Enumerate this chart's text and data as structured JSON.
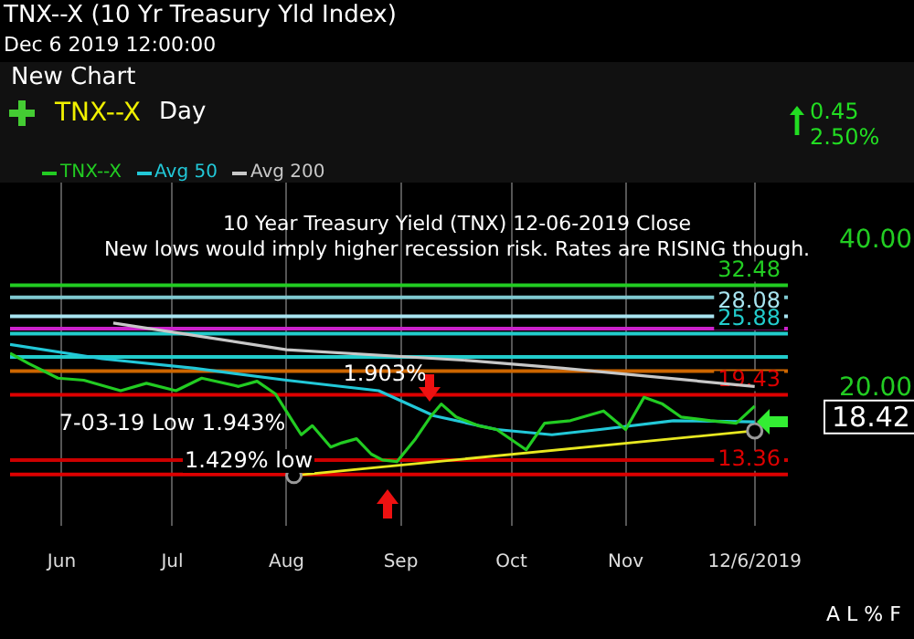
{
  "chart_data": {
    "type": "line",
    "title": "TNX--X (10 Yr Treasury Yld Index)",
    "subtitle": "Dec 6 2019 12:00:00",
    "annotations": [
      "New Chart",
      "TNX--X",
      "Day",
      "0.45",
      "2.50%",
      "10 Year Treasury Yield (TNX) 12-06-2019 Close",
      "New lows would imply higher recession risk. Rates are RISING though.",
      {
        "text": "1.903%",
        "x": "2019-09-13",
        "y": 19.03
      },
      {
        "text": "7-03-19 Low 1.943%",
        "x": "2019-07-03",
        "y": 19.43
      },
      "1.429% low",
      {
        "text": "18.42",
        "x": "2019-12-06",
        "y": 18.42
      },
      "A L % F"
    ],
    "log": "y",
    "grid": "x",
    "legend": "top left",
    "xlim": [
      "2019-05-18",
      "2019-12-15"
    ],
    "xticks": [
      {
        "value": "2019-06-01",
        "label": "Jun"
      },
      {
        "value": "2019-07-01",
        "label": "Jul"
      },
      {
        "value": "2019-08-01",
        "label": "Aug"
      },
      {
        "value": "2019-09-01",
        "label": "Sep"
      },
      {
        "value": "2019-10-01",
        "label": "Oct"
      },
      {
        "value": "2019-11-01",
        "label": "Nov"
      },
      {
        "value": "2019-12-06",
        "label": "12/6/2019"
      }
    ],
    "ylim": [
      10.5,
      52.6
    ],
    "yticks": [
      {
        "value": 20,
        "label": "20.00"
      },
      {
        "value": 40,
        "label": "40.00"
      }
    ],
    "series": [
      {
        "name": "TNX--X",
        "color": "#22cc22",
        "x": [
          "2019-05-18",
          "2019-05-23",
          "2019-05-31",
          "2019-06-07",
          "2019-06-17",
          "2019-06-24",
          "2019-07-02",
          "2019-07-09",
          "2019-07-19",
          "2019-07-24",
          "2019-07-29",
          "2019-08-03",
          "2019-08-05",
          "2019-08-08",
          "2019-08-13",
          "2019-08-16",
          "2019-08-20",
          "2019-08-24",
          "2019-08-27",
          "2019-08-31",
          "2019-09-05",
          "2019-09-09",
          "2019-09-12",
          "2019-09-16",
          "2019-09-22",
          "2019-09-27",
          "2019-10-05",
          "2019-10-10",
          "2019-10-17",
          "2019-10-26",
          "2019-11-01",
          "2019-11-06",
          "2019-11-11",
          "2019-11-16",
          "2019-11-24",
          "2019-12-01",
          "2019-12-06"
        ],
        "values": [
          23.6,
          22.5,
          21.0,
          20.8,
          19.8,
          20.5,
          19.8,
          21.0,
          20.2,
          20.7,
          19.5,
          17.0,
          16.1,
          16.8,
          15.2,
          15.5,
          15.8,
          14.7,
          14.3,
          14.2,
          15.8,
          17.5,
          18.6,
          17.5,
          16.8,
          16.5,
          15.0,
          17.0,
          17.2,
          18.0,
          16.5,
          19.2,
          18.6,
          17.5,
          17.2,
          17.0,
          18.42
        ]
      },
      {
        "name": "Avg 50",
        "color": "#22c8d8",
        "x": [
          "2019-05-18",
          "2019-06-12",
          "2019-07-07",
          "2019-08-01",
          "2019-08-26",
          "2019-09-10",
          "2019-09-27",
          "2019-10-12",
          "2019-10-25",
          "2019-11-14",
          "2019-12-06"
        ],
        "values": [
          24.6,
          23.0,
          22.0,
          20.8,
          19.8,
          17.6,
          16.5,
          16.1,
          16.5,
          17.2,
          17.1
        ]
      },
      {
        "name": "Avg 200",
        "color": "#c8c8c8",
        "x": [
          "2019-06-15",
          "2019-08-01",
          "2019-09-20",
          "2019-10-15",
          "2019-12-06"
        ],
        "values": [
          27.2,
          24.0,
          22.8,
          22.0,
          20.2
        ]
      },
      {
        "color": "#e8e820",
        "marker": "circle",
        "x": [
          "2019-08-03",
          "2019-12-06"
        ],
        "values": [
          13.3,
          16.4
        ]
      }
    ],
    "ref_lines": [
      {
        "axis": "y",
        "value": 32.48,
        "label": "32.48",
        "color": "#22cc22"
      },
      {
        "axis": "y",
        "value": 30.7,
        "color": "#7fc8d0"
      },
      {
        "axis": "y",
        "value": 28.08,
        "label": "28.08",
        "color": "#a8e4f0"
      },
      {
        "axis": "y",
        "value": 26.5,
        "color": "#cc22cc"
      },
      {
        "axis": "y",
        "value": 25.88,
        "label": "25.88",
        "color": "#22cccc"
      },
      {
        "axis": "y",
        "value": 23.2,
        "color": "#22cccc"
      },
      {
        "axis": "y",
        "value": 21.7,
        "color": "#cc6600"
      },
      {
        "axis": "y",
        "value": 19.43,
        "label": "19.43",
        "color": "#dd0000"
      },
      {
        "axis": "y",
        "value": 14.29,
        "color": "#cc0000"
      },
      {
        "axis": "y",
        "value": 13.36,
        "label": "13.36",
        "color": "#dd0000"
      }
    ]
  }
}
